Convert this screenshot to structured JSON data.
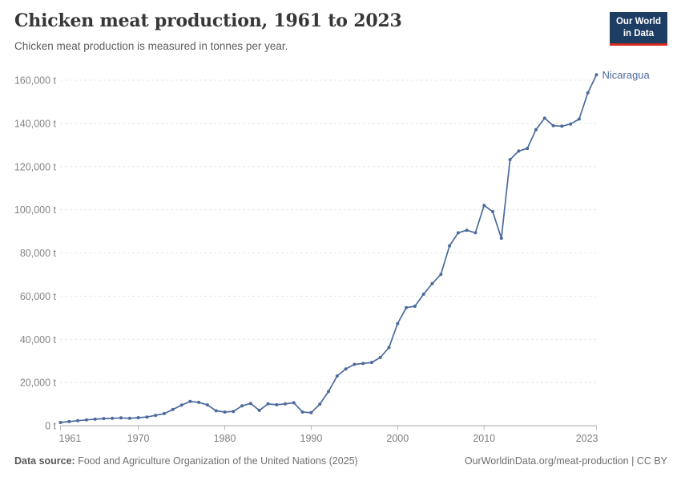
{
  "header": {
    "title": "Chicken meat production, 1961 to 2023",
    "subtitle": "Chicken meat production is measured in tonnes per year.",
    "logo": {
      "line1": "Our World",
      "line2": "in Data"
    }
  },
  "footer": {
    "source_label": "Data source:",
    "source_text": " Food and Agriculture Organization of the United Nations (2025)",
    "credit": "OurWorldinData.org/meat-production | CC BY"
  },
  "chart_data": {
    "type": "line",
    "title": "Chicken meat production, 1961 to 2023",
    "unit": "tonnes",
    "xlim": [
      1961,
      2023
    ],
    "ylim": [
      0,
      160000
    ],
    "grid": "dashed-horizontal",
    "legend_position": "end-of-line-label",
    "x_ticks": [
      1961,
      1970,
      1980,
      1990,
      2000,
      2010,
      2023
    ],
    "y_ticks": [
      {
        "value": 0,
        "label": "0 t"
      },
      {
        "value": 20000,
        "label": "20,000 t"
      },
      {
        "value": 40000,
        "label": "40,000 t"
      },
      {
        "value": 60000,
        "label": "60,000 t"
      },
      {
        "value": 80000,
        "label": "80,000 t"
      },
      {
        "value": 100000,
        "label": "100,000 t"
      },
      {
        "value": 120000,
        "label": "120,000 t"
      },
      {
        "value": 140000,
        "label": "140,000 t"
      },
      {
        "value": 160000,
        "label": "160,000 t"
      }
    ],
    "colors": {
      "line": "#4C6A9C",
      "grid": "#dcdcdc",
      "axis": "#a3a3a3",
      "tick": "#bbbbbb",
      "tick_text": "#7e7e7e"
    },
    "series": [
      {
        "name": "Nicaragua",
        "color": "#4C6A9C",
        "x": [
          1961,
          1962,
          1963,
          1964,
          1965,
          1966,
          1967,
          1968,
          1969,
          1970,
          1971,
          1972,
          1973,
          1974,
          1975,
          1976,
          1977,
          1978,
          1979,
          1980,
          1981,
          1982,
          1983,
          1984,
          1985,
          1986,
          1987,
          1988,
          1989,
          1990,
          1991,
          1992,
          1993,
          1994,
          1995,
          1996,
          1997,
          1998,
          1999,
          2000,
          2001,
          2002,
          2003,
          2004,
          2005,
          2006,
          2007,
          2008,
          2009,
          2010,
          2011,
          2012,
          2013,
          2014,
          2015,
          2016,
          2017,
          2018,
          2019,
          2020,
          2021,
          2022,
          2023
        ],
        "values": [
          1500,
          1900,
          2300,
          2700,
          3000,
          3300,
          3400,
          3600,
          3400,
          3700,
          4000,
          4800,
          5600,
          7500,
          9500,
          11200,
          10800,
          9600,
          6900,
          6300,
          6600,
          9200,
          10300,
          7100,
          10100,
          9700,
          10100,
          10600,
          6300,
          6000,
          10000,
          15800,
          23000,
          26300,
          28400,
          28800,
          29300,
          31600,
          36200,
          47300,
          54700,
          55300,
          60900,
          65800,
          70100,
          83300,
          89300,
          90500,
          89300,
          102000,
          99100,
          86800,
          123200,
          127200,
          128400,
          137100,
          142400,
          138900,
          138700,
          139700,
          142000,
          154100,
          162500
        ]
      }
    ]
  }
}
